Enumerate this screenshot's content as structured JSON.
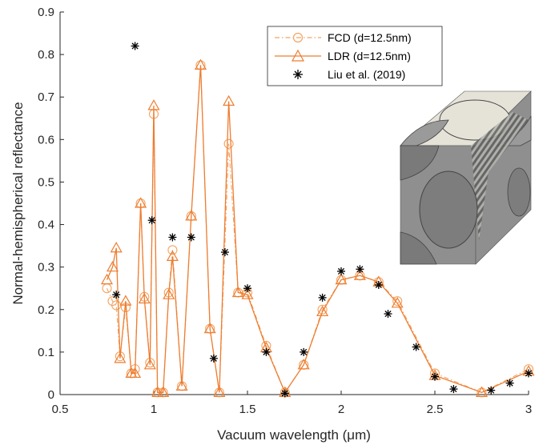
{
  "chart_data": {
    "type": "line",
    "xlabel": "Vacuum wavelength (μm)",
    "ylabel": "Normal-hemispherical reflectance",
    "xlim": [
      0.5,
      3
    ],
    "ylim": [
      0,
      0.9
    ],
    "xticks": [
      "0.5",
      "1",
      "1.5",
      "2",
      "2.5",
      "3"
    ],
    "yticks": [
      "0",
      "0.1",
      "0.2",
      "0.3",
      "0.4",
      "0.5",
      "0.6",
      "0.7",
      "0.8",
      "0.9"
    ],
    "grid": false,
    "legend_position": "top-right",
    "series": [
      {
        "name": "FCD (d=12.5nm)",
        "style": "dash-dot line with circle markers",
        "color": "#f4a460",
        "x": [
          0.75,
          0.78,
          0.8,
          0.82,
          0.85,
          0.88,
          0.9,
          0.93,
          0.95,
          0.98,
          1.0,
          1.02,
          1.05,
          1.08,
          1.1,
          1.15,
          1.2,
          1.25,
          1.3,
          1.35,
          1.4,
          1.45,
          1.5,
          1.6,
          1.7,
          1.8,
          1.9,
          2.0,
          2.1,
          2.2,
          2.3,
          2.5,
          2.75,
          3.0
        ],
        "y": [
          0.25,
          0.22,
          0.21,
          0.09,
          0.205,
          0.05,
          0.06,
          0.45,
          0.23,
          0.075,
          0.66,
          0.005,
          0.005,
          0.24,
          0.34,
          0.02,
          0.42,
          0.775,
          0.155,
          0.005,
          0.59,
          0.24,
          0.24,
          0.115,
          0.005,
          0.07,
          0.2,
          0.27,
          0.28,
          0.265,
          0.22,
          0.05,
          0.005,
          0.06
        ]
      },
      {
        "name": "LDR (d=12.5nm)",
        "style": "solid line with triangle markers",
        "color": "#ed7d31",
        "x": [
          0.75,
          0.78,
          0.8,
          0.82,
          0.85,
          0.88,
          0.9,
          0.93,
          0.95,
          0.98,
          1.0,
          1.02,
          1.05,
          1.08,
          1.1,
          1.15,
          1.2,
          1.25,
          1.3,
          1.35,
          1.4,
          1.45,
          1.5,
          1.6,
          1.7,
          1.8,
          1.9,
          2.0,
          2.1,
          2.2,
          2.3,
          2.5,
          2.75,
          3.0
        ],
        "y": [
          0.27,
          0.3,
          0.345,
          0.085,
          0.22,
          0.05,
          0.05,
          0.45,
          0.225,
          0.07,
          0.68,
          0.005,
          0.005,
          0.235,
          0.325,
          0.02,
          0.42,
          0.775,
          0.155,
          0.005,
          0.69,
          0.24,
          0.235,
          0.11,
          0.005,
          0.07,
          0.195,
          0.27,
          0.28,
          0.265,
          0.215,
          0.045,
          0.005,
          0.055
        ]
      },
      {
        "name": "Liu et al. (2019)",
        "style": "asterisk markers",
        "color": "#000000",
        "x": [
          0.8,
          0.9,
          0.99,
          1.1,
          1.2,
          1.32,
          1.38,
          1.5,
          1.6,
          1.7,
          1.8,
          1.9,
          2.0,
          2.1,
          2.2,
          2.25,
          2.4,
          2.5,
          2.6,
          2.8,
          2.9,
          3.0
        ],
        "y": [
          0.235,
          0.82,
          0.41,
          0.37,
          0.37,
          0.085,
          0.335,
          0.25,
          0.1,
          0.003,
          0.1,
          0.228,
          0.29,
          0.295,
          0.258,
          0.19,
          0.112,
          0.042,
          0.013,
          0.01,
          0.027,
          0.05
        ]
      }
    ]
  }
}
